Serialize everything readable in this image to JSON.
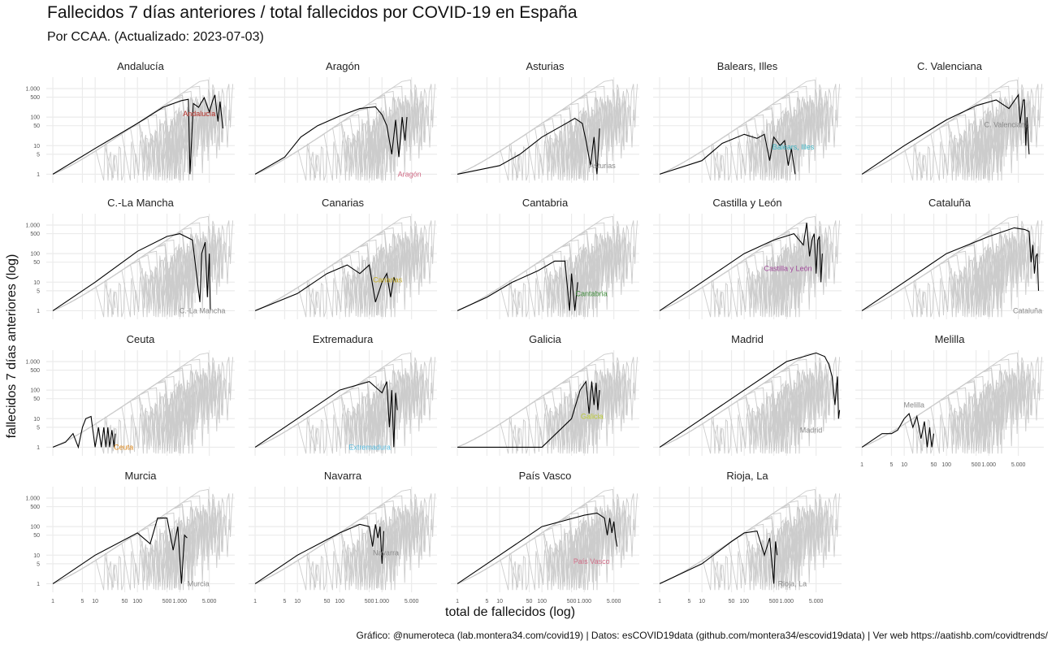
{
  "page": {
    "title": "Fallecidos 7 días anteriores / total fallecidos por COVID-19 en España",
    "subtitle": "Por CCAA. (Actualizado: 2023-07-03)",
    "ylabel": "fallecidos 7 días anteriores (log)",
    "xlabel": "total de fallecidos (log)",
    "caption": "Gráfico: @numeroteca (lab.montera34.com/covid19) | Datos: esCOVID19data (github.com/montera34/escovid19data) | Ver web https://aatishb.com/covidtrends/"
  },
  "chart_data": {
    "type": "line",
    "x_scale": "log",
    "y_scale": "log",
    "xlim": [
      0.7,
      20000
    ],
    "ylim": [
      0.5,
      2500
    ],
    "x_ticks": [
      1,
      5,
      10,
      50,
      100,
      500,
      1000,
      5000
    ],
    "x_tick_labels": [
      "1",
      "5",
      "10",
      "50",
      "100",
      "500",
      "1.000",
      "5.000"
    ],
    "y_ticks": [
      1,
      5,
      10,
      50,
      100,
      500,
      1000
    ],
    "y_tick_labels": [
      "1",
      "5",
      "10",
      "50",
      "100",
      "500",
      "1.000"
    ],
    "grid": true,
    "background_series_color": "#cccccc",
    "highlight_color": "#000000",
    "panels": [
      {
        "name": "Andalucía",
        "label_color": "#b22a23",
        "label_pos": [
          7000,
          130
        ],
        "x": [
          1,
          10,
          100,
          400,
          1100,
          1600,
          1750,
          2100,
          2800,
          3800,
          5000,
          6000,
          6800,
          8000,
          9000,
          10500
        ],
        "y": [
          1,
          8,
          60,
          220,
          380,
          420,
          1,
          300,
          220,
          480,
          150,
          380,
          600,
          70,
          350,
          40
        ]
      },
      {
        "name": "Aragón",
        "label_color": "#d06c86",
        "label_pos": [
          8500,
          1
        ],
        "x": [
          1,
          5,
          12,
          30,
          100,
          300,
          700,
          1000,
          1300,
          1700,
          2100,
          2500,
          3000,
          3500,
          3900
        ],
        "y": [
          1,
          4,
          20,
          50,
          110,
          200,
          230,
          120,
          50,
          5,
          80,
          4,
          100,
          15,
          100
        ]
      },
      {
        "name": "Asturias",
        "label_color": "#888888",
        "label_pos": [
          5500,
          2
        ],
        "x": [
          1,
          10,
          30,
          100,
          300,
          600,
          900,
          1100,
          1400,
          1700,
          2000,
          2300
        ],
        "y": [
          1,
          2,
          5,
          20,
          50,
          90,
          60,
          15,
          2,
          20,
          1,
          40
        ]
      },
      {
        "name": "Balears, Illes",
        "label_color": "#3bb4c4",
        "label_pos": [
          4500,
          9
        ],
        "x": [
          1,
          10,
          30,
          100,
          200,
          300,
          400,
          500,
          700,
          900,
          1100,
          1300,
          1600
        ],
        "y": [
          1,
          3,
          12,
          25,
          18,
          25,
          3,
          20,
          10,
          15,
          2,
          8,
          1
        ]
      },
      {
        "name": "C. Valenciana",
        "label_color": "#888888",
        "label_pos": [
          9000,
          55
        ],
        "x": [
          1,
          10,
          100,
          500,
          1500,
          3000,
          5000,
          5500,
          6500,
          7000,
          7500,
          8000,
          9000
        ],
        "y": [
          1,
          10,
          80,
          250,
          400,
          200,
          600,
          60,
          400,
          400,
          10,
          100,
          5
        ]
      },
      {
        "name": "C.-La Mancha",
        "label_color": "#888888",
        "label_pos": [
          12000,
          1
        ],
        "x": [
          1,
          10,
          100,
          500,
          1000,
          2000,
          3000,
          3300,
          4000,
          4500,
          5000,
          5300
        ],
        "y": [
          1,
          10,
          120,
          400,
          500,
          300,
          2,
          100,
          250,
          3,
          100,
          1
        ]
      },
      {
        "name": "Canarias",
        "label_color": "#c8b02a",
        "label_pos": [
          3000,
          12
        ],
        "x": [
          1,
          10,
          50,
          150,
          300,
          500,
          700,
          1000,
          1300,
          1600,
          1900,
          2100
        ],
        "y": [
          1,
          4,
          20,
          40,
          20,
          40,
          2,
          10,
          20,
          3,
          15,
          10
        ]
      },
      {
        "name": "Cantabria",
        "label_color": "#3e8a3a",
        "label_pos": [
          3500,
          4
        ],
        "x": [
          1,
          5,
          20,
          80,
          200,
          350,
          450,
          500,
          600,
          700
        ],
        "y": [
          1,
          3,
          10,
          25,
          55,
          55,
          1,
          20,
          1,
          10
        ]
      },
      {
        "name": "Castilla y León",
        "label_color": "#a04a9a",
        "label_pos": [
          4000,
          30
        ],
        "x": [
          1,
          10,
          100,
          500,
          1500,
          2500,
          3000,
          3500,
          4000,
          4500,
          5000,
          5500,
          6000,
          6500,
          7000
        ],
        "y": [
          1,
          10,
          100,
          300,
          500,
          200,
          1200,
          80,
          300,
          500,
          20,
          300,
          400,
          10,
          100
        ]
      },
      {
        "name": "Cataluña",
        "label_color": "#888888",
        "label_pos": [
          20000,
          1
        ],
        "x": [
          1,
          10,
          100,
          1000,
          4000,
          7000,
          9000,
          10000,
          11000,
          12000,
          13000,
          14000,
          15000
        ],
        "y": [
          1,
          10,
          100,
          400,
          800,
          700,
          600,
          50,
          200,
          20,
          80,
          100,
          5
        ]
      },
      {
        "name": "Ceuta",
        "label_color": "#e08a1c",
        "label_pos": [
          80,
          1
        ],
        "x": [
          1,
          2,
          3,
          4,
          5,
          6,
          8,
          10,
          12,
          14,
          16,
          18,
          20,
          22,
          25,
          28,
          30
        ],
        "y": [
          1,
          1.5,
          3,
          1,
          5,
          10,
          12,
          1,
          5,
          1,
          5,
          1,
          5,
          1,
          4,
          1,
          3
        ]
      },
      {
        "name": "Extremadura",
        "label_color": "#5bbde0",
        "label_pos": [
          1600,
          1
        ],
        "x": [
          1,
          10,
          100,
          500,
          1000,
          1300,
          1500,
          1700,
          1900,
          2100,
          2300
        ],
        "y": [
          1,
          10,
          100,
          200,
          80,
          200,
          5,
          100,
          1,
          80,
          20
        ]
      },
      {
        "name": "Galicia",
        "label_color": "#b8c830",
        "label_pos": [
          2800,
          12
        ],
        "x": [
          1,
          100,
          500,
          800,
          1100,
          1300,
          1500,
          1700,
          1900,
          2100,
          2300
        ],
        "y": [
          1,
          1,
          10,
          100,
          200,
          15,
          200,
          30,
          180,
          20,
          100
        ]
      },
      {
        "name": "Madrid",
        "label_color": "#888888",
        "label_pos": [
          7000,
          4
        ],
        "x": [
          1,
          10,
          100,
          1000,
          5000,
          8000,
          10000,
          12000,
          14000,
          16000,
          17000,
          18000
        ],
        "y": [
          1,
          10,
          100,
          1000,
          2000,
          1500,
          800,
          300,
          30,
          300,
          10,
          20
        ]
      },
      {
        "name": "Melilla",
        "label_color": "#888888",
        "label_pos": [
          30,
          30
        ],
        "x": [
          1,
          2,
          3,
          5,
          7,
          10,
          13,
          16,
          20,
          25,
          30,
          35,
          40,
          45,
          50
        ],
        "y": [
          1,
          2,
          3,
          3,
          4,
          10,
          15,
          5,
          12,
          2,
          8,
          1,
          5,
          1,
          3
        ]
      },
      {
        "name": "Murcia",
        "label_color": "#888888",
        "label_pos": [
          5000,
          1
        ],
        "x": [
          1,
          10,
          100,
          200,
          300,
          500,
          700,
          900,
          1100,
          1300,
          1500
        ],
        "y": [
          1,
          10,
          60,
          25,
          200,
          200,
          15,
          100,
          1,
          50,
          40
        ]
      },
      {
        "name": "Navarra",
        "label_color": "#888888",
        "label_pos": [
          2500,
          12
        ],
        "x": [
          1,
          10,
          100,
          300,
          500,
          600,
          700,
          800,
          900,
          1000,
          1100
        ],
        "y": [
          1,
          10,
          60,
          120,
          100,
          20,
          120,
          40,
          100,
          5,
          70
        ]
      },
      {
        "name": "País Vasco",
        "label_color": "#d06c86",
        "label_pos": [
          4000,
          6
        ],
        "x": [
          1,
          10,
          100,
          1000,
          2000,
          3000,
          3500,
          4000,
          4500,
          5000,
          5500,
          6000
        ],
        "y": [
          1,
          10,
          100,
          250,
          300,
          200,
          50,
          200,
          60,
          150,
          40,
          20
        ]
      },
      {
        "name": "Rioja, La",
        "label_color": "#888888",
        "label_pos": [
          3000,
          1
        ],
        "x": [
          1,
          10,
          50,
          100,
          200,
          300,
          400,
          500,
          550,
          600
        ],
        "y": [
          1,
          5,
          30,
          60,
          70,
          10,
          40,
          1,
          30,
          10
        ]
      }
    ]
  }
}
